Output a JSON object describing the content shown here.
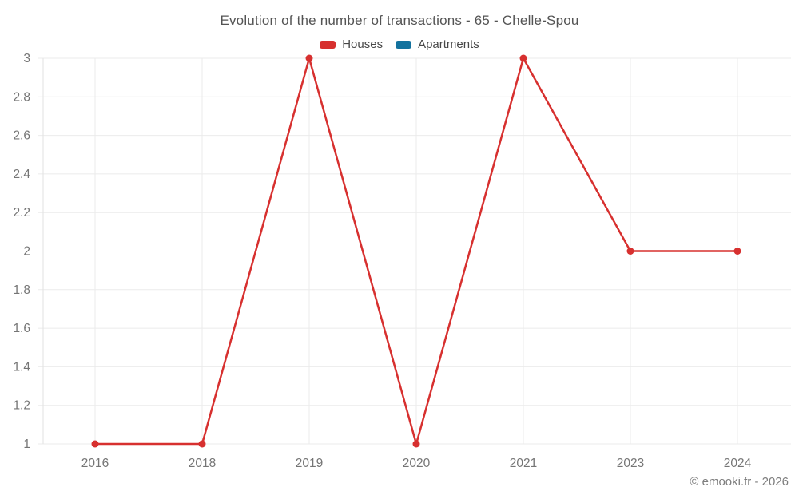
{
  "title": "Evolution of the number of transactions - 65 - Chelle-Spou",
  "footer": "© emooki.fr - 2026",
  "legend": [
    {
      "label": "Houses",
      "color": "#d7302f"
    },
    {
      "label": "Apartments",
      "color": "#13729e"
    }
  ],
  "chart_data": {
    "type": "line",
    "title": "Evolution of the number of transactions - 65 - Chelle-Spou",
    "categories": [
      "2016",
      "2018",
      "2019",
      "2020",
      "2021",
      "2023",
      "2024"
    ],
    "series": [
      {
        "name": "Houses",
        "color": "#d7302f",
        "values": [
          1,
          1,
          3,
          1,
          3,
          2,
          2
        ]
      },
      {
        "name": "Apartments",
        "color": "#13729e",
        "values": []
      }
    ],
    "xlabel": "",
    "ylabel": "",
    "ylim": [
      1,
      3
    ],
    "yticks": [
      1,
      1.2,
      1.4,
      1.6,
      1.8,
      2,
      2.2,
      2.4,
      2.6,
      2.8,
      3
    ],
    "grid": true,
    "legend_position": "top",
    "marker": "circle",
    "colors": {
      "grid": "#ebebeb",
      "axis": "#e2e2e2",
      "tick_label": "#757575",
      "title": "#545454",
      "footer": "#7d7d7d",
      "background": "#ffffff"
    }
  }
}
